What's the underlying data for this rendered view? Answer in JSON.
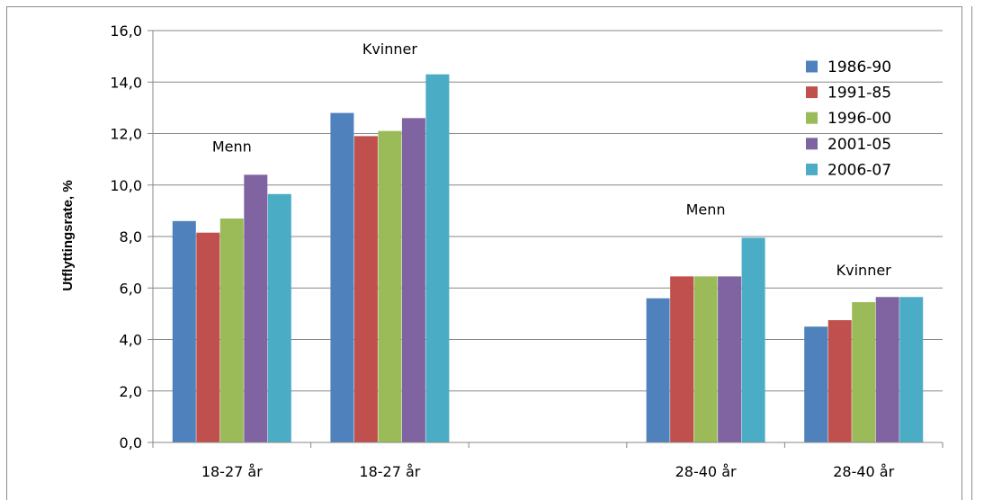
{
  "chart_data": {
    "type": "bar",
    "title": "",
    "xlabel": "",
    "ylabel": "Utflyttingsrate, %",
    "ylim": [
      0,
      16
    ],
    "yticks": [
      "0,0",
      "2,0",
      "4,0",
      "6,0",
      "8,0",
      "10,0",
      "12,0",
      "14,0",
      "16,0"
    ],
    "grid": true,
    "legend_position": "top-right",
    "categories": [
      "18-27 år",
      "18-27 år",
      "",
      "28-40 år",
      "28-40 år"
    ],
    "series": [
      {
        "name": "1986-90",
        "color": "#4F81BD",
        "values": [
          8.6,
          12.8,
          null,
          5.6,
          4.5
        ]
      },
      {
        "name": "1991-85",
        "color": "#C0504D",
        "values": [
          8.15,
          11.9,
          null,
          6.45,
          4.75
        ]
      },
      {
        "name": "1996-00",
        "color": "#9BBB59",
        "values": [
          8.7,
          12.1,
          null,
          6.45,
          5.45
        ]
      },
      {
        "name": "2001-05",
        "color": "#8064A2",
        "values": [
          10.4,
          12.6,
          null,
          6.45,
          5.65
        ]
      },
      {
        "name": "2006-07",
        "color": "#4BACC6",
        "values": [
          9.65,
          14.3,
          null,
          7.95,
          5.65
        ]
      }
    ],
    "annotations": [
      {
        "text": "Menn",
        "category_index": 0,
        "y": 11.3
      },
      {
        "text": "Kvinner",
        "category_index": 1,
        "y": 15.1
      },
      {
        "text": "Menn",
        "category_index": 3,
        "y": 8.85
      },
      {
        "text": "Kvinner",
        "category_index": 4,
        "y": 6.5
      }
    ]
  }
}
